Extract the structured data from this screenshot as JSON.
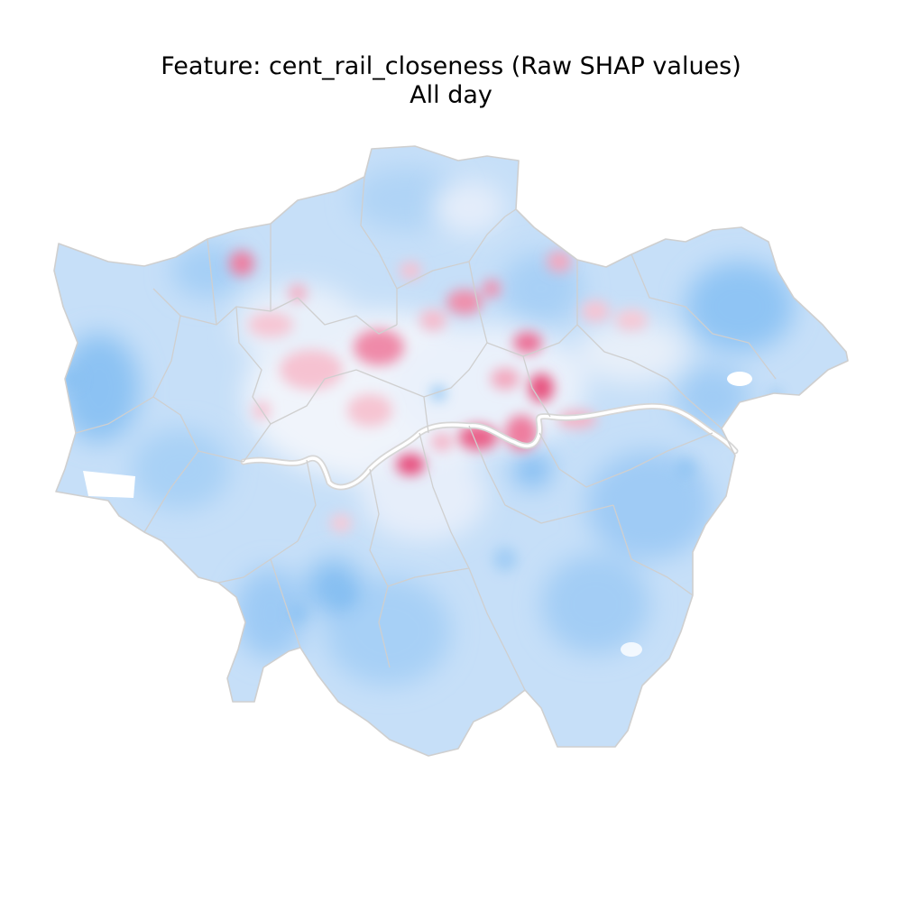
{
  "title": {
    "line1": "Feature: cent_rail_closeness (Raw SHAP values)",
    "line2": "All day"
  },
  "colors": {
    "background": "#ffffff",
    "negative_low": "#c6dff8",
    "negative_high": "#74b6f2",
    "neutral": "#f2f5fb",
    "positive_low": "#f7c6d4",
    "positive_high": "#e8507e",
    "boundary": "#cfcfcf",
    "river": "#d6d6d6"
  }
}
